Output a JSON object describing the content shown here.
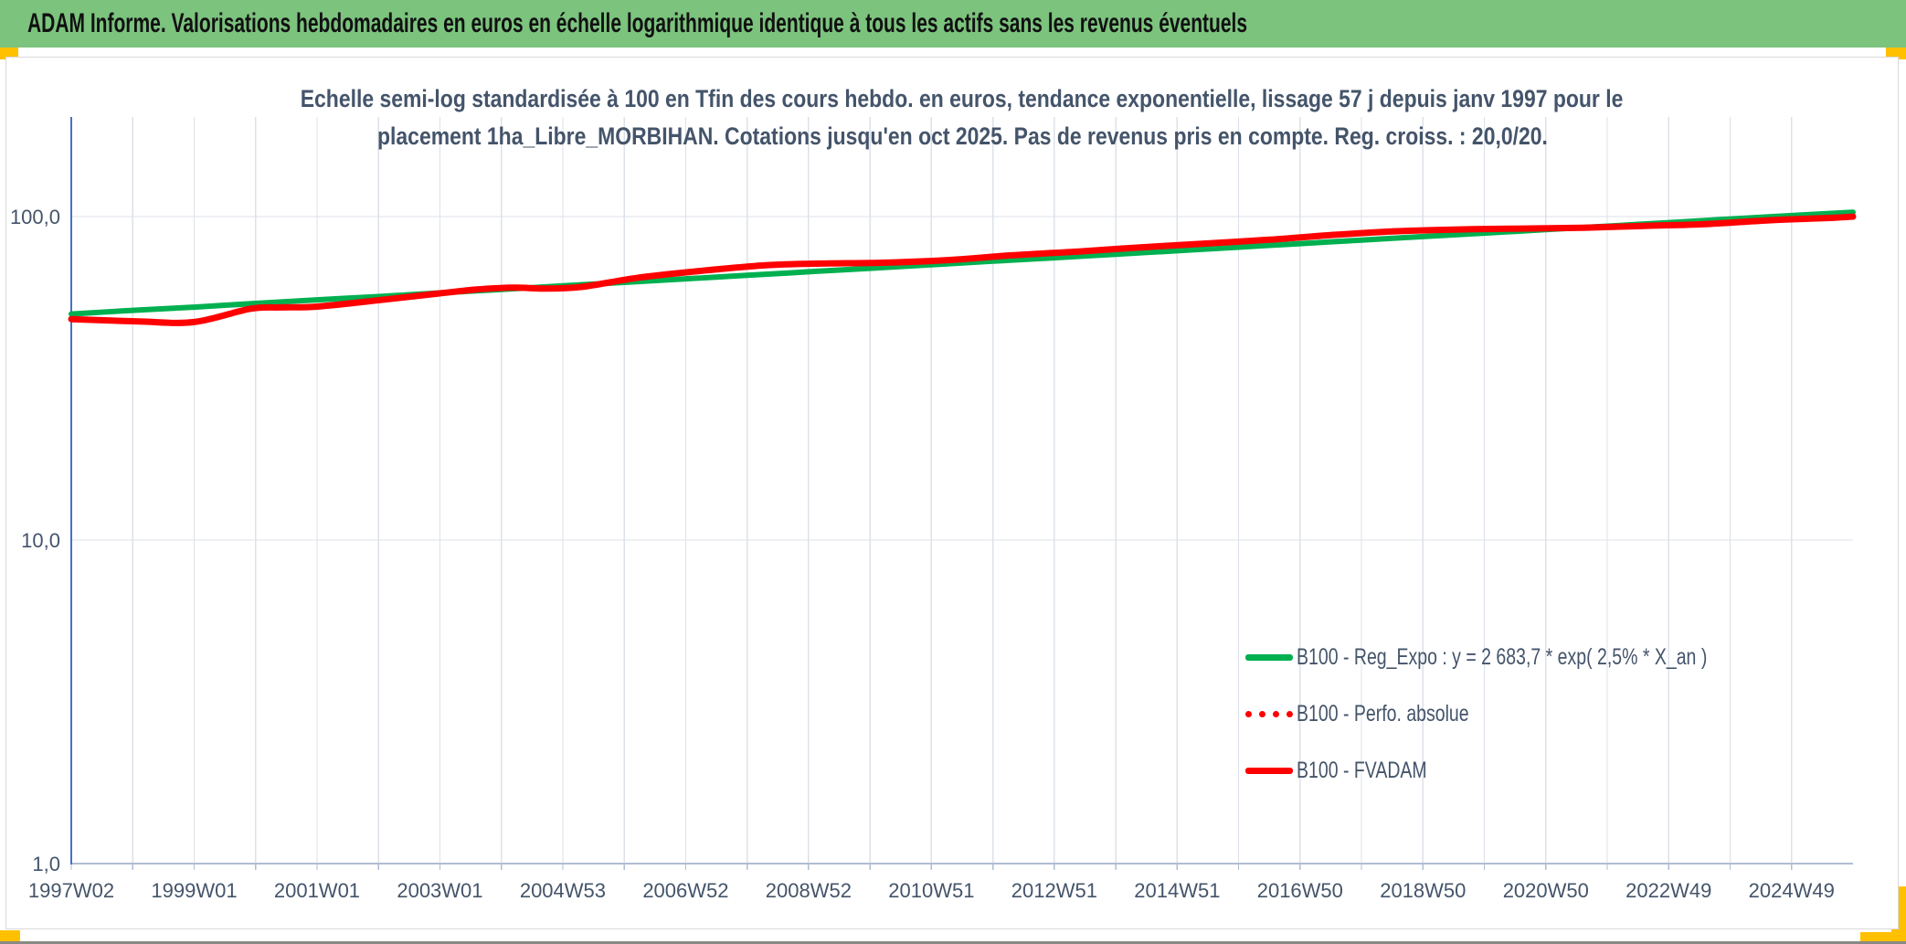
{
  "header": {
    "title": "ADAM Informe. Valorisations hebdomadaires en euros en échelle logarithmique identique à tous les actifs sans les revenus éventuels"
  },
  "chart_data": {
    "type": "line",
    "title_lines": [
      "Echelle semi-log standardisée à 100 en Tfin des cours hebdo. en euros, tendance exponentielle, lissage 57 j depuis janv 1997 pour le",
      "placement 1ha_Libre_MORBIHAN. Cotations jusqu'en oct 2025. Pas de revenus pris en compte. Reg. croiss. : 20,0/20."
    ],
    "y_axis": {
      "scale": "log",
      "ylim": [
        1,
        250
      ],
      "ticks": [
        {
          "label": "100,0",
          "value": 100
        },
        {
          "label": "10,0",
          "value": 10
        },
        {
          "label": "1,0",
          "value": 1
        }
      ]
    },
    "x_axis": {
      "tick_labels": [
        "1997W02",
        "1999W01",
        "2001W01",
        "2003W01",
        "2004W53",
        "2006W52",
        "2008W52",
        "2010W51",
        "2012W51",
        "2014W51",
        "2016W50",
        "2018W50",
        "2020W50",
        "2022W49",
        "2024W49"
      ],
      "years_per_tick": 2,
      "start_year": 1997,
      "end_year": 2026,
      "grid_years": 29
    },
    "legend_position": "inside-bottom-right",
    "series": [
      {
        "name": "B100 - Reg_Expo : y = 2 683,7 * exp( 2,5% *  X_an )",
        "slug": "reg-expo",
        "color": "#00B050",
        "style": "solid",
        "width": 6,
        "points": [
          [
            1997,
            50.0
          ],
          [
            1998,
            51.3
          ],
          [
            1999,
            52.5
          ],
          [
            2000,
            53.9
          ],
          [
            2001,
            55.3
          ],
          [
            2002,
            56.6
          ],
          [
            2003,
            58.1
          ],
          [
            2004,
            59.5
          ],
          [
            2005,
            61.1
          ],
          [
            2006,
            62.6
          ],
          [
            2007,
            64.2
          ],
          [
            2008,
            65.8
          ],
          [
            2009,
            67.5
          ],
          [
            2010,
            69.2
          ],
          [
            2011,
            71.0
          ],
          [
            2012,
            72.8
          ],
          [
            2013,
            74.6
          ],
          [
            2014,
            76.5
          ],
          [
            2015,
            78.4
          ],
          [
            2016,
            80.4
          ],
          [
            2017,
            82.5
          ],
          [
            2018,
            84.6
          ],
          [
            2019,
            86.7
          ],
          [
            2020,
            88.9
          ],
          [
            2021,
            91.1
          ],
          [
            2022,
            93.4
          ],
          [
            2023,
            95.8
          ],
          [
            2024,
            98.3
          ],
          [
            2025,
            100.7
          ],
          [
            2026,
            103.2
          ]
        ]
      },
      {
        "name": "B100 - Perfo. absolue",
        "slug": "perfo-absolue",
        "color": "#FF0000",
        "style": "dotted",
        "width": 5,
        "points": [
          [
            1997,
            48.2
          ],
          [
            1998.1,
            47.4
          ],
          [
            1999,
            47.2
          ],
          [
            1999.9,
            51.8
          ],
          [
            2000.4,
            52.4
          ],
          [
            2001,
            52.7
          ],
          [
            2002.1,
            55.4
          ],
          [
            2003,
            57.9
          ],
          [
            2003.6,
            59.5
          ],
          [
            2004.2,
            60.3
          ],
          [
            2004.7,
            59.9
          ],
          [
            2005.3,
            60.6
          ],
          [
            2006.2,
            64.6
          ],
          [
            2007.1,
            67.5
          ],
          [
            2008.3,
            70.7
          ],
          [
            2009.2,
            71.6
          ],
          [
            2010.2,
            72.0
          ],
          [
            2011.3,
            73.4
          ],
          [
            2012.3,
            75.9
          ],
          [
            2013.4,
            78.0
          ],
          [
            2014.4,
            80.3
          ],
          [
            2015.4,
            82.4
          ],
          [
            2016.5,
            84.8
          ],
          [
            2017.5,
            87.7
          ],
          [
            2018.5,
            90.0
          ],
          [
            2019.5,
            91.2
          ],
          [
            2020.5,
            91.8
          ],
          [
            2021.6,
            92.4
          ],
          [
            2022.6,
            93.6
          ],
          [
            2023.6,
            94.8
          ],
          [
            2024.6,
            97.3
          ],
          [
            2025.7,
            99.2
          ],
          [
            2026,
            100.0
          ]
        ]
      },
      {
        "name": "B100 - FVADAM",
        "slug": "fvadam",
        "color": "#FF0000",
        "style": "solid",
        "width": 7,
        "points": [
          [
            1997,
            48.2
          ],
          [
            1998.1,
            47.4
          ],
          [
            1999,
            47.2
          ],
          [
            1999.9,
            51.8
          ],
          [
            2000.4,
            52.4
          ],
          [
            2001,
            52.7
          ],
          [
            2002.1,
            55.4
          ],
          [
            2003,
            57.9
          ],
          [
            2003.6,
            59.5
          ],
          [
            2004.2,
            60.3
          ],
          [
            2004.7,
            59.9
          ],
          [
            2005.3,
            60.6
          ],
          [
            2006.2,
            64.6
          ],
          [
            2007.1,
            67.5
          ],
          [
            2008.3,
            70.7
          ],
          [
            2009.2,
            71.6
          ],
          [
            2010.2,
            72.0
          ],
          [
            2011.3,
            73.4
          ],
          [
            2012.3,
            75.9
          ],
          [
            2013.4,
            78.0
          ],
          [
            2014.4,
            80.3
          ],
          [
            2015.4,
            82.4
          ],
          [
            2016.5,
            84.8
          ],
          [
            2017.5,
            87.7
          ],
          [
            2018.5,
            90.0
          ],
          [
            2019.5,
            91.2
          ],
          [
            2020.5,
            91.8
          ],
          [
            2021.6,
            92.4
          ],
          [
            2022.6,
            93.6
          ],
          [
            2023.6,
            94.8
          ],
          [
            2024.6,
            97.3
          ],
          [
            2025.7,
            99.2
          ],
          [
            2026,
            100.0
          ]
        ]
      }
    ]
  },
  "colors": {
    "header_green": "#7CC37E",
    "accent_yellow": "#FFC000",
    "text_blue": "#44546A",
    "axis_blue": "#4472C4",
    "axis_light": "#AFBDD3",
    "grid": "#DCE2EA",
    "series_green": "#00B050",
    "series_red": "#FF0000"
  }
}
